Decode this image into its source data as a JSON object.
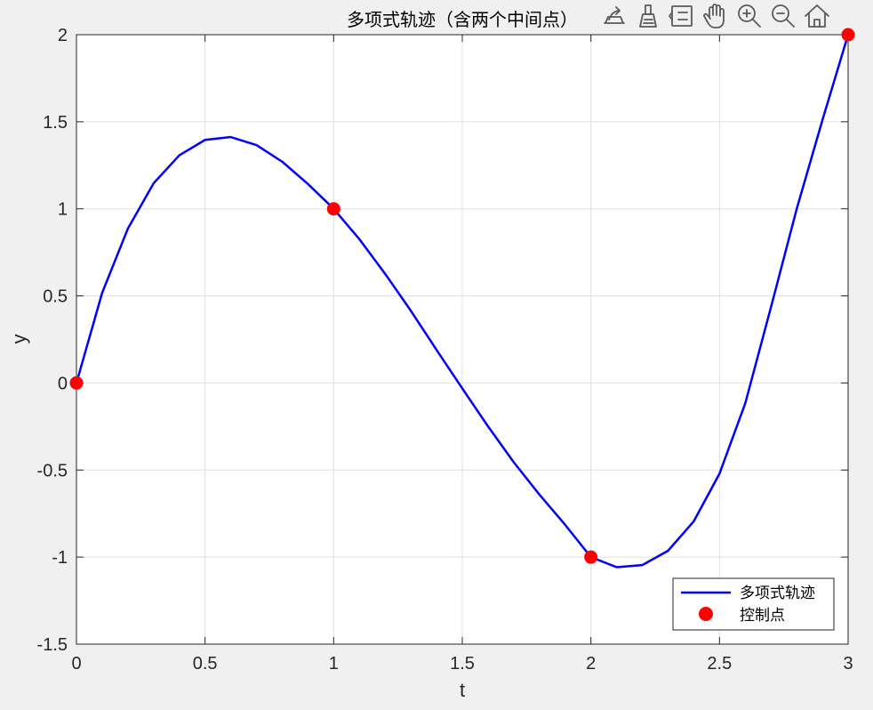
{
  "chart_data": {
    "type": "line",
    "title": "多项式轨迹（含两个中间点）",
    "xlabel": "t",
    "ylabel": "y",
    "xlim": [
      0,
      3
    ],
    "ylim": [
      -1.5,
      2
    ],
    "xticks": [
      0,
      0.5,
      1,
      1.5,
      2,
      2.5,
      3
    ],
    "xtick_labels": [
      "0",
      "0.5",
      "1",
      "1.5",
      "2",
      "2.5",
      "3"
    ],
    "yticks": [
      -1.5,
      -1,
      -0.5,
      0,
      0.5,
      1,
      1.5,
      2
    ],
    "ytick_labels": [
      "-1.5",
      "-1",
      "-0.5",
      "0",
      "0.5",
      "1",
      "1.5",
      "2"
    ],
    "grid": true,
    "legend_position": "bottom-right",
    "series": [
      {
        "name": "多项式轨迹",
        "kind": "line",
        "color": "#0000ff",
        "x": [
          0,
          0.1,
          0.2,
          0.3,
          0.4,
          0.5,
          0.6,
          0.7,
          0.8,
          0.9,
          1.0,
          1.1,
          1.2,
          1.3,
          1.4,
          1.5,
          1.6,
          1.7,
          1.8,
          1.9,
          2.0,
          2.1,
          2.2,
          2.3,
          2.4,
          2.5,
          2.6,
          2.7,
          2.8,
          2.9,
          3.0
        ],
        "y": [
          0,
          0.5175,
          0.8866,
          1.1469,
          1.3074,
          1.3958,
          1.4122,
          1.3661,
          1.2706,
          1.1427,
          1.0,
          0.8257,
          0.6271,
          0.4147,
          0.1898,
          -0.0313,
          -0.2489,
          -0.4552,
          -0.6413,
          -0.8146,
          -1.0,
          -1.0578,
          -1.0458,
          -0.9634,
          -0.7944,
          -0.5208,
          -0.1173,
          0.4341,
          0.9985,
          1.5087,
          2.0
        ]
      },
      {
        "name": "控制点",
        "kind": "scatter",
        "color": "#ff0000",
        "x": [
          0,
          1,
          2,
          3
        ],
        "y": [
          0,
          1,
          -1,
          2
        ]
      }
    ]
  },
  "toolbar": {
    "icons": [
      "export-icon",
      "brush-icon",
      "data-tips-icon",
      "pan-hand-icon",
      "zoom-in-icon",
      "zoom-out-icon",
      "home-icon"
    ]
  }
}
